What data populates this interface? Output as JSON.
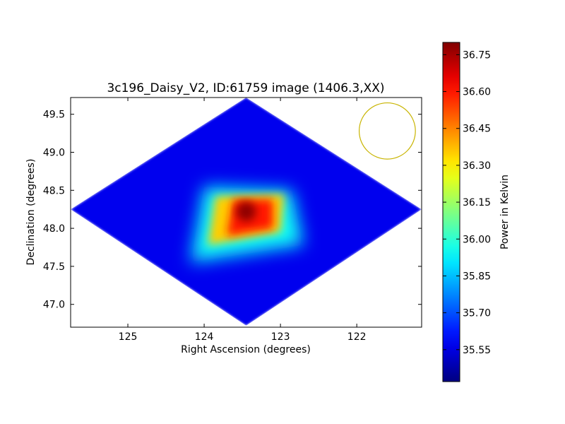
{
  "chart_data": {
    "type": "heatmap",
    "title": "3c196_Daisy_V2, ID:61759 image (1406.3,XX)",
    "xlabel": "Right Ascension (degrees)",
    "ylabel": "Declination (degrees)",
    "x_inverted": true,
    "xlim": [
      125.75,
      121.15
    ],
    "ylim": [
      46.7,
      49.72
    ],
    "x_ticks": [
      125,
      124,
      123,
      122
    ],
    "y_ticks": [
      47.0,
      47.5,
      48.0,
      48.5,
      49.0,
      49.5
    ],
    "x_tick_labels": [
      "125",
      "124",
      "123",
      "122"
    ],
    "y_tick_labels": [
      "47.0",
      "47.5",
      "48.0",
      "48.5",
      "49.0",
      "49.5"
    ],
    "colorbar": {
      "label": "Power in Kelvin",
      "range": [
        35.42,
        36.8
      ],
      "ticks": [
        35.55,
        35.7,
        35.85,
        36.0,
        36.15,
        36.3,
        36.45,
        36.6,
        36.75
      ],
      "tick_labels": [
        "35.55",
        "35.70",
        "35.85",
        "36.00",
        "36.15",
        "36.30",
        "36.45",
        "36.60",
        "36.75"
      ],
      "colormap": "jet"
    },
    "footprint": {
      "vertices": [
        [
          123.45,
          49.72
        ],
        [
          125.75,
          48.25
        ],
        [
          123.45,
          46.72
        ],
        [
          121.15,
          48.25
        ]
      ],
      "background_value": 35.57
    },
    "peak": {
      "ra": 123.45,
      "dec": 48.22,
      "value": 36.78
    },
    "regions": [
      {
        "polygon": [
          [
            124.0,
            48.55
          ],
          [
            122.85,
            48.5
          ],
          [
            122.7,
            47.78
          ],
          [
            124.18,
            47.55
          ]
        ],
        "value": 35.95
      },
      {
        "polygon": [
          [
            123.85,
            48.42
          ],
          [
            122.95,
            48.45
          ],
          [
            123.0,
            47.95
          ],
          [
            123.95,
            47.78
          ]
        ],
        "value": 36.35
      },
      {
        "polygon": [
          [
            123.62,
            48.38
          ],
          [
            123.1,
            48.38
          ],
          [
            123.1,
            48.0
          ],
          [
            123.7,
            47.9
          ]
        ],
        "value": 36.6
      }
    ],
    "beam": {
      "ra": 121.6,
      "dec": 49.28,
      "radius_deg": 0.37,
      "color": "#c8b400"
    }
  }
}
